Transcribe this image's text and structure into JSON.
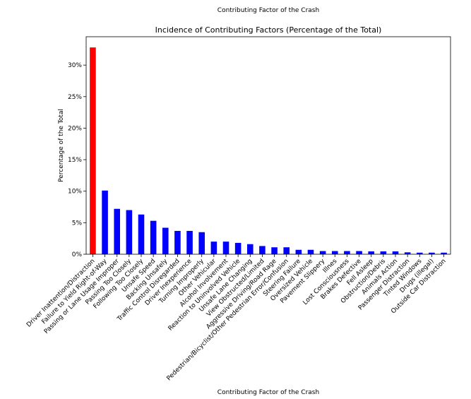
{
  "page": {
    "top_caption": "Contributing Factor of the Crash"
  },
  "chart_data": {
    "type": "bar",
    "title": "Incidence of Contributing Factors (Percentage of the Total)",
    "xlabel": "Contributing Factor of the Crash",
    "ylabel": "Percentage of the Total",
    "ylim": [
      0,
      34.5
    ],
    "yticks": [
      0,
      5,
      10,
      15,
      20,
      25,
      30
    ],
    "ytick_labels": [
      "0%",
      "5%",
      "10%",
      "15%",
      "20%",
      "25%",
      "30%"
    ],
    "grid": false,
    "legend": "none",
    "colors": {
      "highlight": "#ff0000",
      "default": "#0000ff"
    },
    "highlight_index": 0,
    "categories": [
      "Driver Inattention/Distraction",
      "Failure to Yield Right-of-Way",
      "Passing or Lane Usage Improper",
      "Passing Too Closely",
      "Following Too Closely",
      "Unsafe Speed",
      "Backing Unsafely",
      "Traffic Control Disregarded",
      "Driver Inexperience",
      "Turning Improperly",
      "Other Vehicular",
      "Alcohol Involvement",
      "Reaction to Uninvolved Vehicle",
      "Unsafe Lane Changing",
      "View Obstructed/Limited",
      "Aggressive Driving/Road Rage",
      "Pedestrian/Bicyclist/Other Pedestrian Error/Confusion",
      "Steering Failure",
      "Oversized Vehicle",
      "Pavement Slippery",
      "Illnes",
      "Lost Consciousness",
      "Brakes Defective",
      "Fell Asleep",
      "Obstruction/Debris",
      "Animals Action",
      "Passenger Distraction",
      "Tinted Windows",
      "Drugs (illegal)",
      "Outside Car Distraction"
    ],
    "values": [
      32.8,
      10.1,
      7.2,
      7.0,
      6.3,
      5.3,
      4.2,
      3.7,
      3.7,
      3.5,
      2.0,
      2.0,
      1.8,
      1.6,
      1.3,
      1.1,
      1.1,
      0.7,
      0.7,
      0.5,
      0.5,
      0.5,
      0.5,
      0.45,
      0.45,
      0.45,
      0.3,
      0.25,
      0.25,
      0.25
    ]
  }
}
